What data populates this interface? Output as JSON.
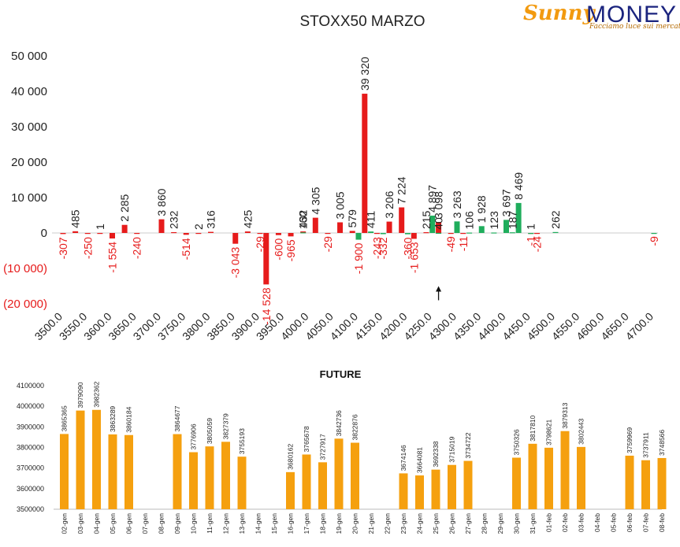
{
  "brand": {
    "name_part1": "Sunny",
    "name_part2": "MONEY",
    "tagline": "Facciamo luce sui mercati",
    "primary_color": "#1a237e",
    "accent_color": "#f29a0f"
  },
  "chart_data": [
    {
      "type": "bar",
      "title": "STOXX50 MARZO",
      "xlabel": "",
      "ylabel": "",
      "ylim": [
        -20000,
        50000
      ],
      "y_ticks": [
        {
          "value": 50000,
          "label": "50 000"
        },
        {
          "value": 40000,
          "label": "40 000"
        },
        {
          "value": 30000,
          "label": "30 000"
        },
        {
          "value": 20000,
          "label": "20 000"
        },
        {
          "value": 10000,
          "label": "10 000"
        },
        {
          "value": 0,
          "label": "0"
        },
        {
          "value": -10000,
          "label": "(10 000)"
        },
        {
          "value": -20000,
          "label": "(20 000)"
        }
      ],
      "x_range": [
        3500,
        4700
      ],
      "x_step": 25,
      "x_tick_labels": [
        "3500.0",
        "3550.0",
        "3600.0",
        "3650.0",
        "3700.0",
        "3750.0",
        "3800.0",
        "3850.0",
        "3900.0",
        "3950.0",
        "4000.0",
        "4050.0",
        "4100.0",
        "4150.0",
        "4200.0",
        "4250.0",
        "4300.0",
        "4350.0",
        "4400.0",
        "4450.0",
        "4500.0",
        "4550.0",
        "4600.0",
        "4650.0",
        "4700.0"
      ],
      "grid": false,
      "legend": "none",
      "colors": {
        "red": "#e61b1b",
        "green": "#1fad5c",
        "positive_label": "#222222",
        "negative_label": "#e61b1b"
      },
      "series": [
        {
          "color": "red",
          "points": [
            {
              "x": 3500,
              "value": -307,
              "label": "-307"
            },
            {
              "x": 3525,
              "value": 485,
              "label": "485"
            },
            {
              "x": 3550,
              "value": -250,
              "label": "-250"
            },
            {
              "x": 3575,
              "value": 1,
              "label": "1"
            },
            {
              "x": 3600,
              "value": -1554,
              "label": "-1 554"
            },
            {
              "x": 3625,
              "value": 2285,
              "label": "2 285"
            },
            {
              "x": 3650,
              "value": -240,
              "label": "-240"
            },
            {
              "x": 3700,
              "value": 3860,
              "label": "3 860"
            },
            {
              "x": 3725,
              "value": 232,
              "label": "232"
            },
            {
              "x": 3750,
              "value": -514,
              "label": "-514"
            },
            {
              "x": 3775,
              "value": 2,
              "label": "2"
            },
            {
              "x": 3800,
              "value": 316,
              "label": "316"
            },
            {
              "x": 3850,
              "value": -3043,
              "label": "-3 043"
            },
            {
              "x": 3875,
              "value": 425,
              "label": "425"
            },
            {
              "x": 3900,
              "value": -29,
              "label": "-29"
            },
            {
              "x": 3912.5,
              "value": -14528,
              "label": "-14 528"
            },
            {
              "x": 3937.5,
              "value": -600,
              "label": "-600"
            },
            {
              "x": 3962.5,
              "value": -965,
              "label": "-965"
            },
            {
              "x": 3987.5,
              "value": 432,
              "label": "432"
            },
            {
              "x": 4012.5,
              "value": 4305,
              "label": "4 305"
            },
            {
              "x": 4037.5,
              "value": -29,
              "label": "-29"
            },
            {
              "x": 4062.5,
              "value": 3005,
              "label": "3 005"
            },
            {
              "x": 4087.5,
              "value": 579,
              "label": "579"
            },
            {
              "x": 4112.5,
              "value": 39320,
              "label": "39 320"
            },
            {
              "x": 4137.5,
              "value": -243,
              "label": "-243"
            },
            {
              "x": 4162.5,
              "value": 3206,
              "label": "3 206"
            },
            {
              "x": 4187.5,
              "value": 7224,
              "label": "7 224"
            },
            {
              "x": 4212.5,
              "value": -1653,
              "label": "-1 653"
            },
            {
              "x": 4237.5,
              "value": 215,
              "label": "215"
            },
            {
              "x": 4262.5,
              "value": 3098,
              "label": "3 098"
            },
            {
              "x": 4287.5,
              "value": -49,
              "label": "-49"
            },
            {
              "x": 4312.5,
              "value": -11,
              "label": "-11"
            },
            {
              "x": 4450,
              "value": -1,
              "label": "-1"
            },
            {
              "x": 4462.5,
              "value": -24,
              "label": "-24"
            }
          ]
        },
        {
          "color": "green",
          "points": [
            {
              "x": 3987.5,
              "value": 160,
              "label": "160"
            },
            {
              "x": 4100,
              "value": -1900,
              "label": "-1 900"
            },
            {
              "x": 4125,
              "value": 411,
              "label": "411"
            },
            {
              "x": 4150,
              "value": -332,
              "label": "-332"
            },
            {
              "x": 4200,
              "value": -360,
              "label": "-360"
            },
            {
              "x": 4250,
              "value": 4897,
              "label": "4 897"
            },
            {
              "x": 4262.5,
              "value": 40,
              "label": "40"
            },
            {
              "x": 4300,
              "value": 3263,
              "label": "3 263"
            },
            {
              "x": 4325,
              "value": 106,
              "label": "106"
            },
            {
              "x": 4350,
              "value": 1928,
              "label": "1 928"
            },
            {
              "x": 4375,
              "value": 123,
              "label": "123"
            },
            {
              "x": 4400,
              "value": 3697,
              "label": "3 697"
            },
            {
              "x": 4412.5,
              "value": 187,
              "label": "187"
            },
            {
              "x": 4425,
              "value": 8469,
              "label": "8 469"
            },
            {
              "x": 4450,
              "value": 1,
              "label": "1"
            },
            {
              "x": 4500,
              "value": 262,
              "label": "262"
            },
            {
              "x": 4700,
              "value": -9,
              "label": "-9"
            }
          ]
        }
      ],
      "annotation": {
        "type": "arrow",
        "x": 4262.5,
        "from_value": -19000,
        "to_value": -15000
      }
    },
    {
      "type": "bar",
      "title": "FUTURE",
      "xlabel": "",
      "ylabel": "",
      "ylim": [
        3500000,
        4100000
      ],
      "y_ticks": [
        {
          "value": 4100000,
          "label": "4100000"
        },
        {
          "value": 4000000,
          "label": "4000000"
        },
        {
          "value": 3900000,
          "label": "3900000"
        },
        {
          "value": 3800000,
          "label": "3800000"
        },
        {
          "value": 3700000,
          "label": "3700000"
        },
        {
          "value": 3600000,
          "label": "3600000"
        },
        {
          "value": 3500000,
          "label": "3500000"
        }
      ],
      "grid": false,
      "legend": "none",
      "bar_color": "#f5a00f",
      "categories": [
        "02-gen",
        "03-gen",
        "04-gen",
        "05-gen",
        "06-gen",
        "07-gen",
        "08-gen",
        "09-gen",
        "10-gen",
        "11-gen",
        "12-gen",
        "13-gen",
        "14-gen",
        "15-gen",
        "16-gen",
        "17-gen",
        "18-gen",
        "19-gen",
        "20-gen",
        "21-gen",
        "22-gen",
        "23-gen",
        "24-gen",
        "25-gen",
        "26-gen",
        "27-gen",
        "28-gen",
        "29-gen",
        "30-gen",
        "31-gen",
        "01-feb",
        "02-feb",
        "03-feb",
        "04-feb",
        "05-feb",
        "06-feb",
        "07-feb",
        "08-feb"
      ],
      "values": [
        3865365,
        3979090,
        3982362,
        3863289,
        3860184,
        null,
        null,
        3864677,
        3776906,
        3805059,
        3827379,
        3755193,
        null,
        null,
        3680162,
        3765678,
        3727917,
        3842736,
        3822876,
        null,
        null,
        3674146,
        3664081,
        3692338,
        3715019,
        3734722,
        null,
        null,
        3750326,
        3817810,
        3798621,
        3879313,
        3802443,
        null,
        null,
        3759969,
        3737911,
        3748566
      ]
    }
  ]
}
